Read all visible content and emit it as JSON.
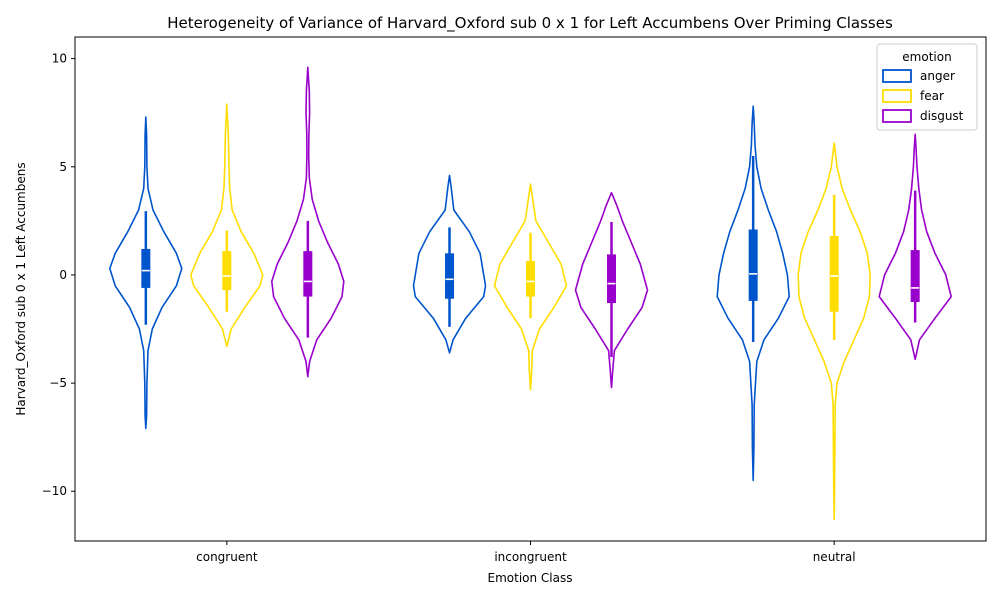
{
  "chart_data": {
    "type": "violin",
    "title": "Heterogeneity of Variance of Harvard_Oxford sub 0 x 1 for Left Accumbens Over Priming Classes",
    "xlabel": "Emotion Class",
    "ylabel": "Harvard_Oxford sub 0 x 1 Left Accumbens",
    "ylim": [
      -12.3,
      11.0
    ],
    "yticks": [
      10,
      5,
      0,
      -5,
      -10
    ],
    "ytick_labels": [
      "10",
      "5",
      "0",
      "−5",
      "−10"
    ],
    "categories": [
      "congruent",
      "incongruent",
      "neutral"
    ],
    "legend": {
      "title": "emotion",
      "placement": "top-right"
    },
    "series": [
      {
        "name": "anger",
        "color": "#0055cc",
        "stats": [
          {
            "min": -2.3,
            "q1": -0.6,
            "median": 0.2,
            "q3": 1.2,
            "max": 2.95
          },
          {
            "min": -2.4,
            "q1": -1.1,
            "median": -0.2,
            "q3": 1.0,
            "max": 2.2
          },
          {
            "min": -3.1,
            "q1": -1.2,
            "median": 0.05,
            "q3": 2.1,
            "max": 5.5
          }
        ],
        "density": [
          {
            "profile": [
              [
                -7.1,
                0.0
              ],
              [
                -6.5,
                0.02
              ],
              [
                -5.0,
                0.03
              ],
              [
                -3.5,
                0.06
              ],
              [
                -2.5,
                0.18
              ],
              [
                -1.5,
                0.45
              ],
              [
                -0.5,
                0.85
              ],
              [
                0.3,
                1.0
              ],
              [
                1.0,
                0.85
              ],
              [
                2.0,
                0.5
              ],
              [
                3.0,
                0.2
              ],
              [
                4.0,
                0.06
              ],
              [
                5.0,
                0.03
              ],
              [
                6.5,
                0.02
              ],
              [
                7.3,
                0.0
              ]
            ]
          },
          {
            "profile": [
              [
                -3.6,
                0.0
              ],
              [
                -3.0,
                0.1
              ],
              [
                -2.0,
                0.45
              ],
              [
                -1.0,
                0.95
              ],
              [
                -0.5,
                1.0
              ],
              [
                0.0,
                0.95
              ],
              [
                1.0,
                0.85
              ],
              [
                2.0,
                0.55
              ],
              [
                3.0,
                0.12
              ],
              [
                4.0,
                0.05
              ],
              [
                4.6,
                0.0
              ]
            ]
          },
          {
            "profile": [
              [
                -9.5,
                0.0
              ],
              [
                -8.0,
                0.02
              ],
              [
                -6.0,
                0.03
              ],
              [
                -4.0,
                0.1
              ],
              [
                -3.0,
                0.3
              ],
              [
                -2.0,
                0.7
              ],
              [
                -1.0,
                1.0
              ],
              [
                0.0,
                0.95
              ],
              [
                1.0,
                0.82
              ],
              [
                2.0,
                0.65
              ],
              [
                3.0,
                0.42
              ],
              [
                4.0,
                0.22
              ],
              [
                5.0,
                0.1
              ],
              [
                6.0,
                0.05
              ],
              [
                7.0,
                0.03
              ],
              [
                7.8,
                0.0
              ]
            ]
          }
        ]
      },
      {
        "name": "fear",
        "color": "#ffdd00",
        "stats": [
          {
            "min": -1.7,
            "q1": -0.7,
            "median": -0.05,
            "q3": 1.1,
            "max": 2.05
          },
          {
            "min": -2.0,
            "q1": -1.0,
            "median": -0.3,
            "q3": 0.65,
            "max": 1.95
          },
          {
            "min": -3.0,
            "q1": -1.7,
            "median": -0.05,
            "q3": 1.8,
            "max": 3.7
          }
        ],
        "density": [
          {
            "profile": [
              [
                -3.3,
                0.0
              ],
              [
                -2.5,
                0.12
              ],
              [
                -1.5,
                0.5
              ],
              [
                -0.5,
                0.92
              ],
              [
                0.0,
                1.0
              ],
              [
                1.0,
                0.75
              ],
              [
                2.0,
                0.4
              ],
              [
                3.0,
                0.15
              ],
              [
                4.0,
                0.08
              ],
              [
                5.0,
                0.06
              ],
              [
                6.5,
                0.04
              ],
              [
                7.9,
                0.0
              ]
            ]
          },
          {
            "profile": [
              [
                -5.3,
                0.0
              ],
              [
                -4.5,
                0.03
              ],
              [
                -3.5,
                0.05
              ],
              [
                -2.5,
                0.25
              ],
              [
                -1.5,
                0.65
              ],
              [
                -0.5,
                1.0
              ],
              [
                0.5,
                0.85
              ],
              [
                1.5,
                0.5
              ],
              [
                2.5,
                0.15
              ],
              [
                3.5,
                0.06
              ],
              [
                4.2,
                0.0
              ]
            ]
          },
          {
            "profile": [
              [
                -11.3,
                0.0
              ],
              [
                -10.0,
                0.01
              ],
              [
                -8.0,
                0.02
              ],
              [
                -6.0,
                0.03
              ],
              [
                -5.0,
                0.08
              ],
              [
                -4.0,
                0.28
              ],
              [
                -3.0,
                0.55
              ],
              [
                -2.0,
                0.82
              ],
              [
                -1.0,
                0.98
              ],
              [
                0.0,
                1.0
              ],
              [
                1.0,
                0.92
              ],
              [
                2.0,
                0.72
              ],
              [
                3.0,
                0.45
              ],
              [
                4.0,
                0.22
              ],
              [
                5.0,
                0.08
              ],
              [
                6.1,
                0.0
              ]
            ]
          }
        ]
      },
      {
        "name": "disgust",
        "color": "#9900cc",
        "stats": [
          {
            "min": -2.9,
            "q1": -1.0,
            "median": -0.3,
            "q3": 1.1,
            "max": 2.5
          },
          {
            "min": -3.8,
            "q1": -1.3,
            "median": -0.4,
            "q3": 0.95,
            "max": 2.45
          },
          {
            "min": -2.2,
            "q1": -1.25,
            "median": -0.6,
            "q3": 1.15,
            "max": 3.9
          }
        ],
        "density": [
          {
            "profile": [
              [
                -4.7,
                0.0
              ],
              [
                -4.0,
                0.05
              ],
              [
                -3.0,
                0.25
              ],
              [
                -2.0,
                0.65
              ],
              [
                -1.0,
                0.95
              ],
              [
                -0.3,
                1.0
              ],
              [
                0.5,
                0.85
              ],
              [
                1.5,
                0.55
              ],
              [
                2.5,
                0.3
              ],
              [
                3.5,
                0.12
              ],
              [
                4.5,
                0.04
              ],
              [
                5.5,
                0.025
              ],
              [
                6.5,
                0.03
              ],
              [
                7.5,
                0.05
              ],
              [
                8.5,
                0.04
              ],
              [
                9.6,
                0.0
              ]
            ]
          },
          {
            "profile": [
              [
                -5.2,
                0.0
              ],
              [
                -4.5,
                0.03
              ],
              [
                -3.5,
                0.08
              ],
              [
                -2.5,
                0.45
              ],
              [
                -1.5,
                0.85
              ],
              [
                -0.7,
                1.0
              ],
              [
                0.5,
                0.8
              ],
              [
                1.5,
                0.55
              ],
              [
                2.5,
                0.3
              ],
              [
                3.2,
                0.15
              ],
              [
                3.8,
                0.0
              ]
            ]
          },
          {
            "profile": [
              [
                -3.9,
                0.0
              ],
              [
                -3.0,
                0.12
              ],
              [
                -2.0,
                0.55
              ],
              [
                -1.0,
                1.0
              ],
              [
                0.0,
                0.85
              ],
              [
                1.0,
                0.55
              ],
              [
                2.0,
                0.32
              ],
              [
                3.0,
                0.18
              ],
              [
                4.0,
                0.1
              ],
              [
                5.0,
                0.05
              ],
              [
                6.0,
                0.02
              ],
              [
                6.5,
                0.0
              ]
            ]
          }
        ]
      }
    ]
  }
}
